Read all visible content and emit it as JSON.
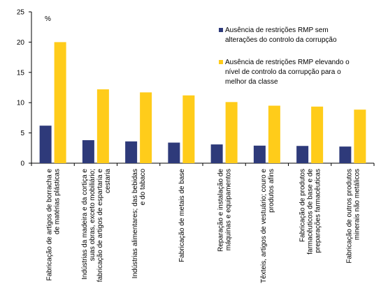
{
  "chart_data": {
    "type": "bar",
    "ylabel": "%",
    "ylim": [
      0,
      25
    ],
    "yticks": [
      0,
      5,
      10,
      15,
      20,
      25
    ],
    "categories": [
      [
        "Fabricação de artigos de borracha e",
        "de matérias plásticas"
      ],
      [
        "Indústrias da madeira e da cortiça e",
        "suas obras, exceto mobiliário;",
        "fabricação de artigos de espartaria e",
        "cestaria"
      ],
      [
        "Indústrias alimentares; das bebidas",
        "e do tabaco"
      ],
      [
        "Fabricação de metais de base"
      ],
      [
        "Reparação e instalação de",
        "máquinas e equipamentos"
      ],
      [
        "Têxteis, artigos de vestuário; couro e",
        "produtos afins"
      ],
      [
        "Fabricação de produtos",
        "farmacêuticos de base e de",
        "preparações farmacêuticas"
      ],
      [
        "Fabricação de outros produtos",
        "minerais não metálicos"
      ]
    ],
    "series": [
      {
        "name": "Ausência de restrições RMP sem alterações do controlo da corrupção",
        "legend_lines": [
          "Ausência de restrições RMP sem",
          "alterações do controlo da corrupção"
        ],
        "color": "#2e3a7a",
        "values": [
          6.2,
          3.8,
          3.6,
          3.4,
          3.1,
          2.9,
          2.85,
          2.75
        ]
      },
      {
        "name": "Ausência de restrições RMP elevando o nível de controlo da corrupção para o melhor da classe",
        "legend_lines": [
          "Ausência de restrições RMP elevando o",
          "nível de controlo da corrupção para o",
          "melhor da classe"
        ],
        "color": "#ffcc1a",
        "values": [
          20.0,
          12.2,
          11.7,
          11.2,
          10.1,
          9.5,
          9.35,
          8.85
        ]
      }
    ],
    "legend_position": "top-right",
    "grid": false
  }
}
